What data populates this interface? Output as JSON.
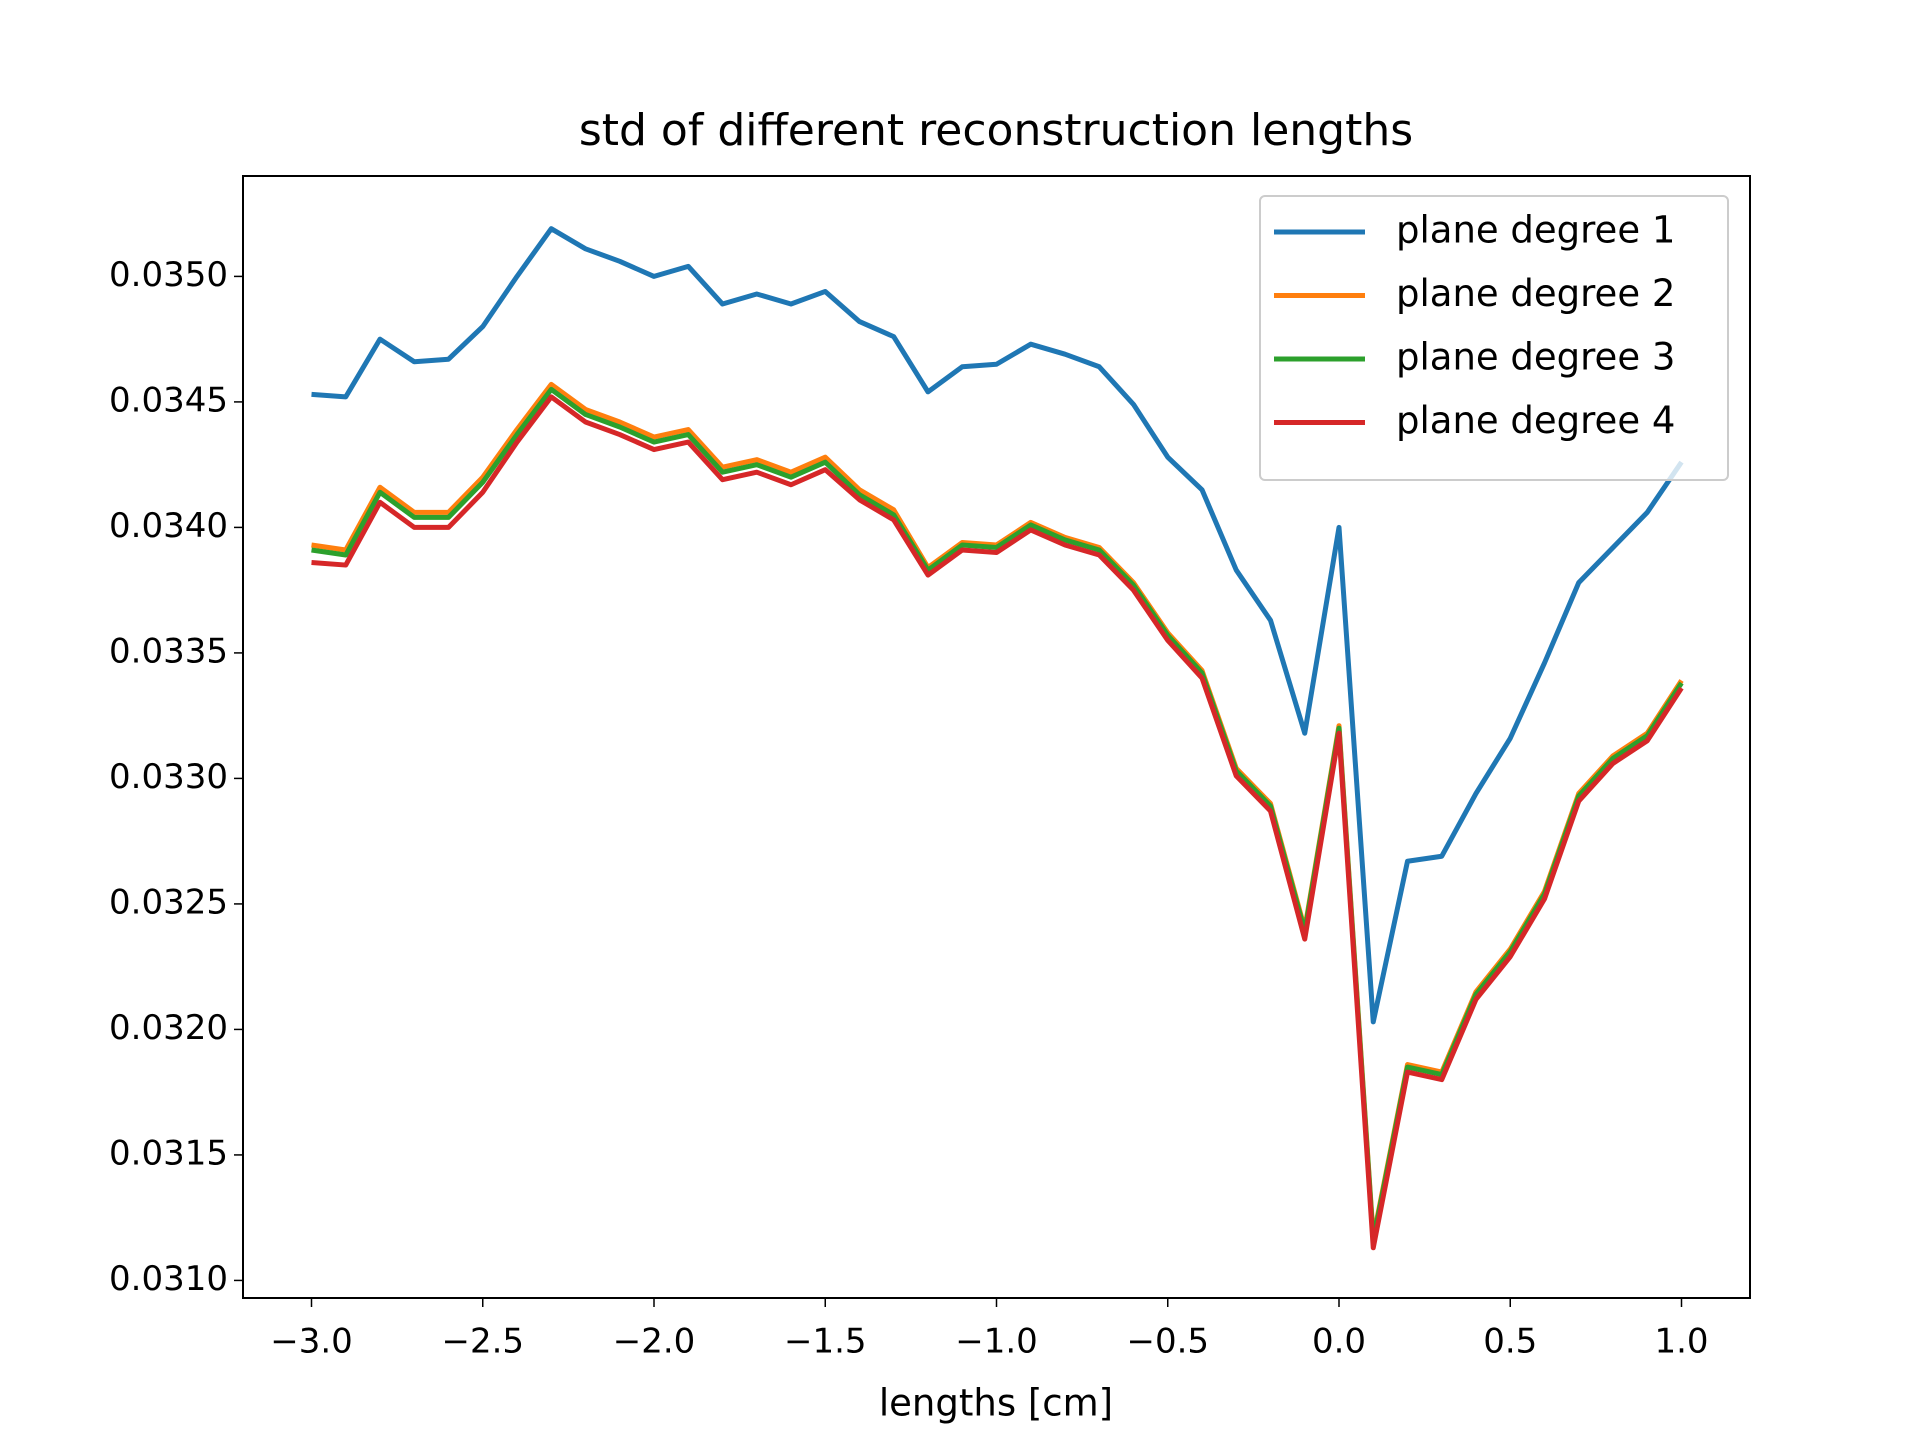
{
  "chart_data": {
    "type": "line",
    "title": "std of different reconstruction lengths",
    "xlabel": "lengths [cm]",
    "x": [
      -3.0,
      -2.9,
      -2.8,
      -2.7,
      -2.6,
      -2.5,
      -2.4,
      -2.3,
      -2.2,
      -2.1,
      -2.0,
      -1.9,
      -1.8,
      -1.7,
      -1.6,
      -1.5,
      -1.4,
      -1.3,
      -1.2,
      -1.1,
      -1.0,
      -0.9,
      -0.8,
      -0.7,
      -0.6,
      -0.5,
      -0.4,
      -0.3,
      -0.2,
      -0.1,
      0.0,
      0.1,
      0.2,
      0.3,
      0.4,
      0.5,
      0.6,
      0.7,
      0.8,
      0.9,
      1.0
    ],
    "series": [
      {
        "name": "plane degree 1",
        "color": "#1f77b4",
        "values": [
          0.03453,
          0.03452,
          0.03475,
          0.03466,
          0.03467,
          0.0348,
          0.035,
          0.03519,
          0.03511,
          0.03506,
          0.035,
          0.03504,
          0.03489,
          0.03493,
          0.03489,
          0.03494,
          0.03482,
          0.03476,
          0.03454,
          0.03464,
          0.03465,
          0.03473,
          0.03469,
          0.03464,
          0.03449,
          0.03428,
          0.03415,
          0.03383,
          0.03363,
          0.03318,
          0.034,
          0.03203,
          0.03267,
          0.03269,
          0.03294,
          0.03316,
          0.03346,
          0.03378,
          0.03392,
          0.03406,
          0.03426
        ]
      },
      {
        "name": "plane degree 2",
        "color": "#ff7f0e",
        "values": [
          0.03393,
          0.03391,
          0.03416,
          0.03406,
          0.03406,
          0.0342,
          0.03439,
          0.03457,
          0.03447,
          0.03442,
          0.03436,
          0.03439,
          0.03424,
          0.03427,
          0.03422,
          0.03428,
          0.03415,
          0.03407,
          0.03384,
          0.03394,
          0.03393,
          0.03402,
          0.03396,
          0.03392,
          0.03378,
          0.03358,
          0.03343,
          0.03304,
          0.0329,
          0.0324,
          0.03321,
          0.03117,
          0.03186,
          0.03183,
          0.03215,
          0.03232,
          0.03255,
          0.03294,
          0.03309,
          0.03318,
          0.03339
        ]
      },
      {
        "name": "plane degree 3",
        "color": "#2ca02c",
        "values": [
          0.03391,
          0.03389,
          0.03414,
          0.03404,
          0.03404,
          0.03418,
          0.03437,
          0.03455,
          0.03445,
          0.0344,
          0.03434,
          0.03437,
          0.03422,
          0.03425,
          0.0342,
          0.03426,
          0.03413,
          0.03405,
          0.03383,
          0.03393,
          0.03392,
          0.03401,
          0.03395,
          0.03391,
          0.03377,
          0.03357,
          0.03342,
          0.03303,
          0.03289,
          0.03239,
          0.0332,
          0.03116,
          0.03185,
          0.03182,
          0.03214,
          0.03231,
          0.03254,
          0.03293,
          0.03308,
          0.03317,
          0.03338
        ]
      },
      {
        "name": "plane degree 4",
        "color": "#d62728",
        "values": [
          0.03386,
          0.03385,
          0.0341,
          0.034,
          0.034,
          0.03414,
          0.03434,
          0.03452,
          0.03442,
          0.03437,
          0.03431,
          0.03434,
          0.03419,
          0.03422,
          0.03417,
          0.03423,
          0.03411,
          0.03403,
          0.03381,
          0.03391,
          0.0339,
          0.03399,
          0.03393,
          0.03389,
          0.03375,
          0.03355,
          0.0334,
          0.03301,
          0.03287,
          0.03236,
          0.03318,
          0.03113,
          0.03183,
          0.0318,
          0.03212,
          0.03229,
          0.03252,
          0.03291,
          0.03306,
          0.03315,
          0.03336
        ]
      }
    ],
    "xlim": [
      -3.2,
      1.2
    ],
    "xticks": [
      {
        "value": -3.0,
        "label": "−3.0"
      },
      {
        "value": -2.5,
        "label": "−2.5"
      },
      {
        "value": -2.0,
        "label": "−2.0"
      },
      {
        "value": -1.5,
        "label": "−1.5"
      },
      {
        "value": -1.0,
        "label": "−1.0"
      },
      {
        "value": -0.5,
        "label": "−0.5"
      },
      {
        "value": 0.0,
        "label": "0.0"
      },
      0.5,
      {
        "value": 1.0,
        "label": "1.0"
      }
    ],
    "ylim": [
      0.03093,
      0.0354
    ],
    "yticks": [
      {
        "value": 0.031,
        "label": "0.0310"
      },
      0.0315,
      {
        "value": 0.032,
        "label": "0.0320"
      },
      0.0325,
      {
        "value": 0.033,
        "label": "0.0330"
      },
      0.0335,
      {
        "value": 0.034,
        "label": "0.0340"
      },
      0.0345,
      {
        "value": 0.035,
        "label": "0.0350"
      }
    ],
    "legend": "upper right",
    "grid": false
  }
}
